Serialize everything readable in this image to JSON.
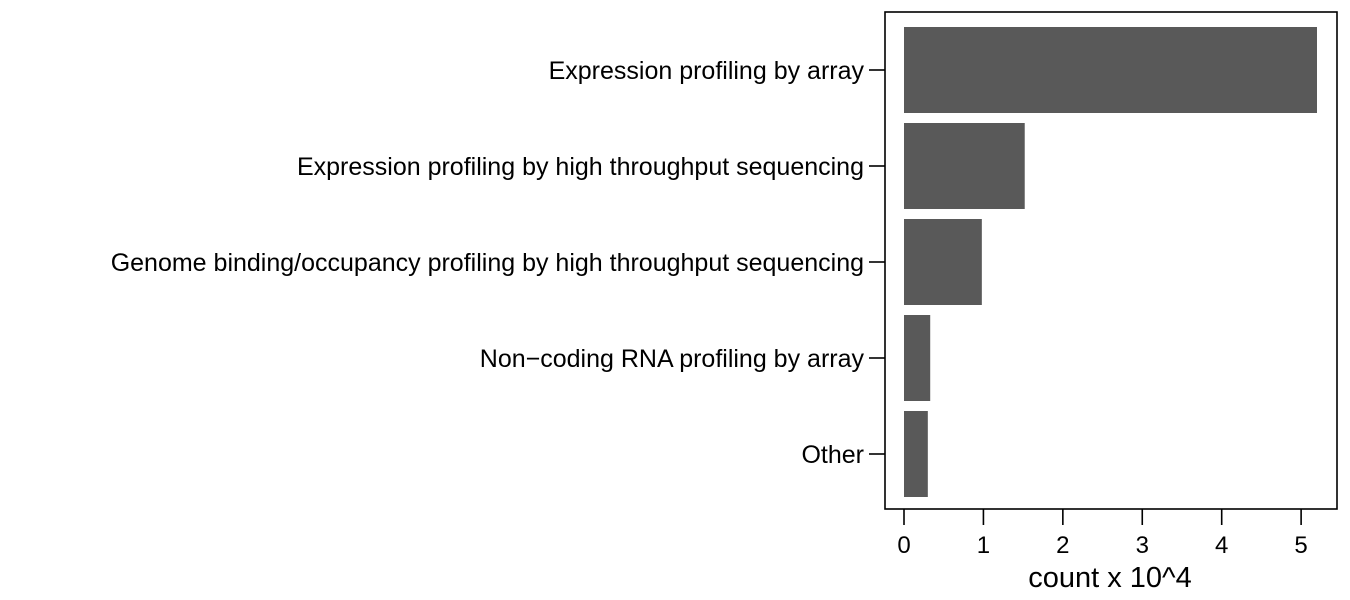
{
  "chart_data": {
    "type": "bar",
    "orientation": "horizontal",
    "categories": [
      "Expression profiling by array",
      "Expression profiling by high throughput sequencing",
      "Genome binding/occupancy profiling by high throughput sequencing",
      "Non−coding RNA profiling by array",
      "Other"
    ],
    "values": [
      5.2,
      1.52,
      0.98,
      0.33,
      0.3
    ],
    "xlabel": "count x 10^4",
    "ylabel": "",
    "xlim": [
      0,
      5.2
    ],
    "xticks": [
      "0",
      "1",
      "2",
      "3",
      "4",
      "5"
    ],
    "bar_color": "#595959",
    "grid": false,
    "legend": "none"
  }
}
